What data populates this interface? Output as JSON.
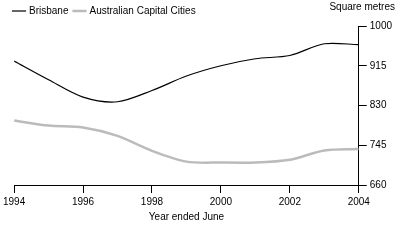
{
  "chart_data": {
    "type": "line",
    "x": [
      1994,
      1995,
      1996,
      1997,
      1998,
      1999,
      2000,
      2001,
      2002,
      2003,
      2004
    ],
    "series": [
      {
        "name": "Brisbane",
        "color": "#000000",
        "values": [
          925,
          885,
          848,
          838,
          862,
          893,
          915,
          930,
          937,
          962,
          960
        ]
      },
      {
        "name": "Australian Capital Cities",
        "color": "#bbbbbb",
        "values": [
          798,
          787,
          783,
          765,
          733,
          710,
          708,
          708,
          714,
          734,
          737
        ]
      }
    ],
    "x_label": "Year ended June",
    "y_label": "Square metres",
    "xlim": [
      1994,
      2004
    ],
    "xticks": [
      1994,
      1996,
      1998,
      2000,
      2002,
      2004
    ],
    "ylim": [
      660,
      1000
    ],
    "yticks": [
      660,
      745,
      830,
      915,
      1000
    ],
    "grid": false,
    "legend": "top-left"
  }
}
